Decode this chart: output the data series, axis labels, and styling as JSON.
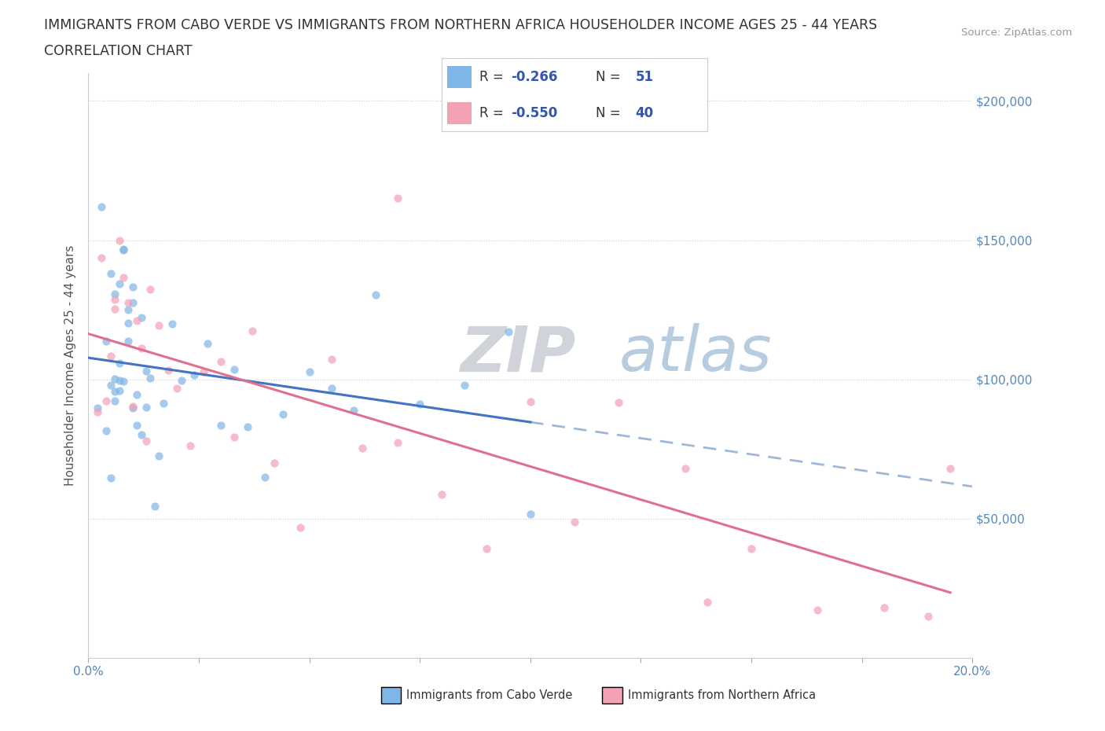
{
  "title_line1": "IMMIGRANTS FROM CABO VERDE VS IMMIGRANTS FROM NORTHERN AFRICA HOUSEHOLDER INCOME AGES 25 - 44 YEARS",
  "title_line2": "CORRELATION CHART",
  "source_text": "Source: ZipAtlas.com",
  "ylabel": "Householder Income Ages 25 - 44 years",
  "x_min": 0.0,
  "x_max": 0.2,
  "y_min": 0,
  "y_max": 210000,
  "color_cv": "#7eb6e8",
  "color_na": "#f4a0b5",
  "trendline_cv_color": "#4472c4",
  "trendline_na_color": "#e07090",
  "trendline_dashed_color": "#a0b8d8",
  "background_color": "#ffffff",
  "grid_color": "#cccccc",
  "legend_r1": "-0.266",
  "legend_n1": "51",
  "legend_r2": "-0.550",
  "legend_n2": "40",
  "watermark_zip": "ZIP",
  "watermark_atlas": "atlas",
  "watermark_color_zip": "#d0d4da",
  "watermark_color_atlas": "#b8cce0"
}
